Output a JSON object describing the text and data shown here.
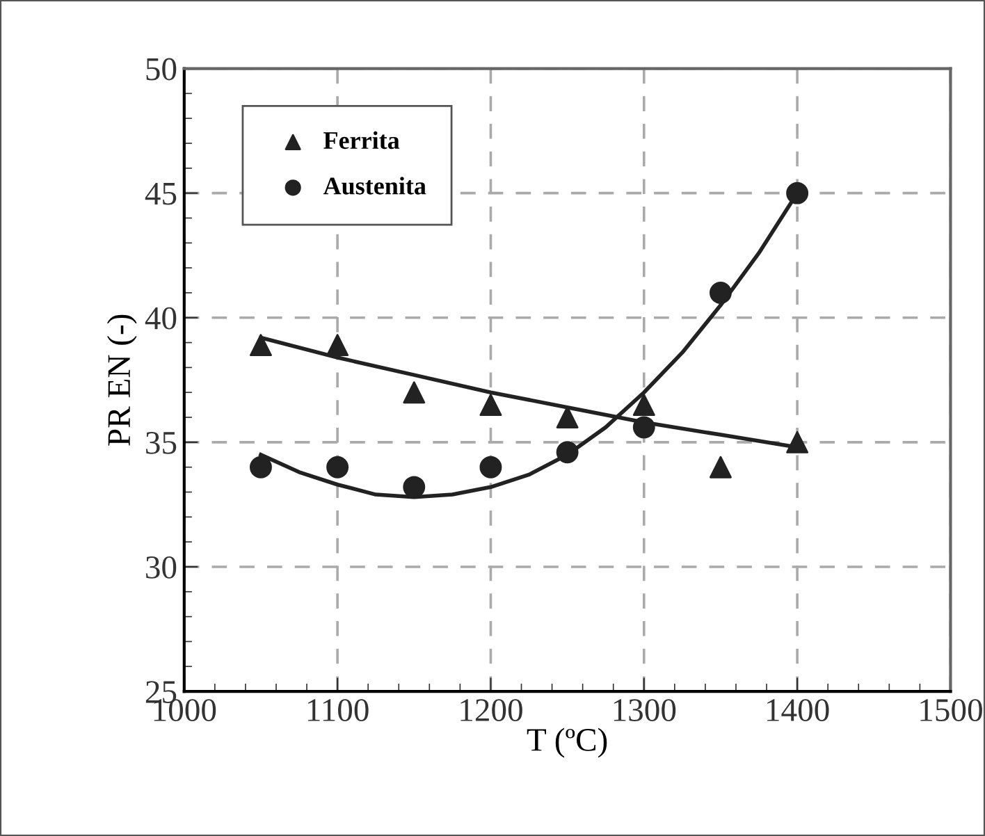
{
  "chart_data": {
    "type": "scatter",
    "xlabel": "T (ºC)",
    "ylabel": "PR EN (-)",
    "xlim": [
      1000,
      1500
    ],
    "xticks": [
      1000,
      1100,
      1200,
      1300,
      1400,
      1500
    ],
    "ylim": [
      25,
      50
    ],
    "yticks": [
      25,
      30,
      35,
      40,
      45,
      50
    ],
    "grid": true,
    "legend": "top left",
    "series": [
      {
        "name": "Ferrita",
        "color": "#222222",
        "marker": "triangle",
        "x": [
          1050,
          1100,
          1150,
          1200,
          1250,
          1300,
          1350,
          1400
        ],
        "values": [
          38.9,
          38.9,
          37,
          36.5,
          36,
          36.5,
          34,
          35
        ]
      },
      {
        "name": "Austenita",
        "color": "#222222",
        "marker": "circle",
        "x": [
          1050,
          1100,
          1150,
          1200,
          1250,
          1300,
          1350,
          1400
        ],
        "values": [
          34,
          34,
          33.2,
          34,
          34.6,
          35.6,
          41,
          45
        ]
      },
      {
        "type": "line",
        "color": "#222222",
        "marker": "none",
        "line_style": "solid",
        "x": [
          1050,
          1100,
          1150,
          1200,
          1250,
          1300,
          1350,
          1400
        ],
        "values": [
          39.2,
          38.4,
          37.7,
          37.0,
          36.4,
          35.8,
          35.3,
          34.8
        ]
      },
      {
        "type": "line",
        "color": "#222222",
        "marker": "none",
        "line_style": "solid",
        "x": [
          1050,
          1075,
          1100,
          1125,
          1150,
          1175,
          1200,
          1225,
          1250,
          1275,
          1300,
          1325,
          1350,
          1375,
          1400
        ],
        "values": [
          34.5,
          33.8,
          33.3,
          32.9,
          32.8,
          32.9,
          33.2,
          33.7,
          34.5,
          35.6,
          37.0,
          38.6,
          40.5,
          42.6,
          45.0
        ]
      }
    ]
  }
}
